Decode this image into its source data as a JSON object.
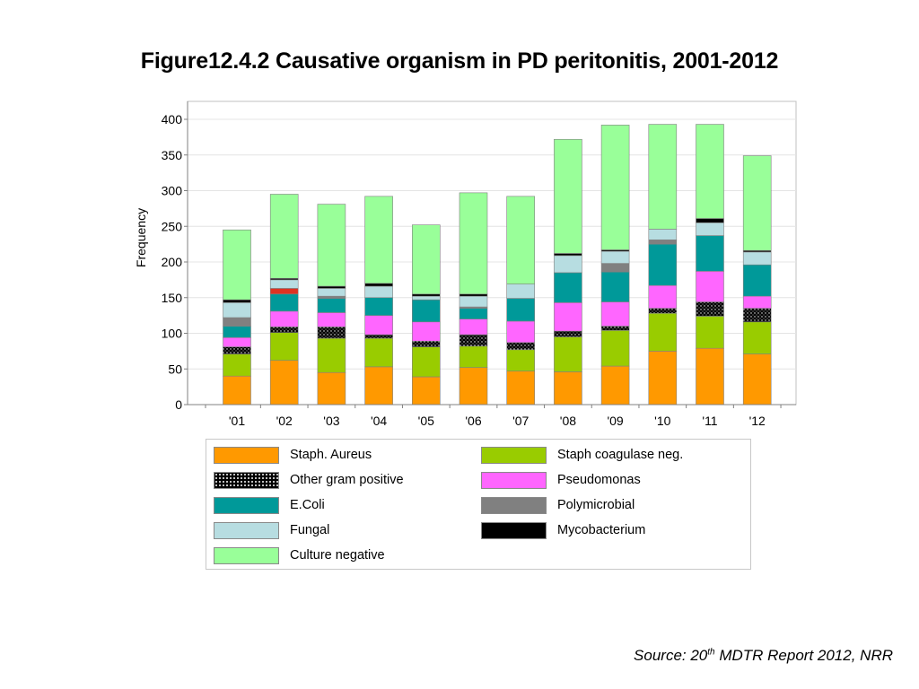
{
  "title": "Figure12.4.2 Causative organism in PD peritonitis, 2001-2012",
  "source": {
    "prefix": "Source: 20",
    "sup": "th",
    "suffix": " MDTR Report 2012, NRR"
  },
  "chart_data": {
    "type": "bar",
    "stacked": true,
    "ylabel": "Frequency",
    "xlabel": "",
    "ylim": [
      0,
      400
    ],
    "yticks": [
      0,
      50,
      100,
      150,
      200,
      250,
      300,
      350,
      400
    ],
    "grid": true,
    "categories": [
      "'01",
      "'02",
      "'03",
      "'04",
      "'05",
      "'06",
      "'07",
      "'08",
      "'09",
      "'10",
      "'11",
      "'12"
    ],
    "series": [
      {
        "name": "Staph. Aureus",
        "color": "#ff9900",
        "pattern": "solid",
        "values": [
          40,
          62,
          45,
          53,
          39,
          52,
          47,
          46,
          54,
          75,
          79,
          71
        ]
      },
      {
        "name": "Staph coagulase neg.",
        "color": "#99cc00",
        "pattern": "solid",
        "values": [
          31,
          39,
          48,
          40,
          42,
          30,
          30,
          49,
          50,
          53,
          45,
          45
        ]
      },
      {
        "name": "Other gram positive",
        "color": "#000000",
        "pattern": "dotted",
        "values": [
          10,
          8,
          16,
          5,
          8,
          16,
          10,
          8,
          6,
          7,
          20,
          19
        ]
      },
      {
        "name": "Pseudomonas",
        "color": "#ff66ff",
        "pattern": "solid",
        "values": [
          13,
          22,
          20,
          27,
          27,
          22,
          30,
          40,
          34,
          32,
          43,
          17
        ]
      },
      {
        "name": "E.Coli",
        "color": "#009999",
        "pattern": "solid",
        "values": [
          16,
          24,
          20,
          25,
          31,
          15,
          32,
          42,
          42,
          58,
          50,
          44
        ]
      },
      {
        "name": "Polymicrobial",
        "color": "#808080",
        "pattern": "solid",
        "values": [
          12,
          0,
          3,
          0,
          0,
          2,
          0,
          0,
          12,
          6,
          0,
          0
        ]
      },
      {
        "name": "Fungal",
        "color": "#b7dde1",
        "pattern": "solid",
        "values": [
          21,
          12,
          11,
          16,
          5,
          15,
          20,
          24,
          17,
          15,
          18,
          18
        ]
      },
      {
        "name": "Mycobacterium",
        "color": "#000000",
        "pattern": "solid",
        "values": [
          4,
          2,
          3,
          4,
          3,
          3,
          0,
          3,
          2,
          0,
          6,
          2
        ]
      },
      {
        "name": "Culture negative",
        "color": "#99ff99",
        "pattern": "solid",
        "values": [
          98,
          118,
          115,
          122,
          97,
          142,
          123,
          160,
          175,
          147,
          132,
          133
        ]
      }
    ],
    "extra_segment_note": {
      "category": "'02",
      "color": "#dd3322",
      "value": 8
    }
  },
  "legend_items": [
    {
      "name": "Staph. Aureus",
      "color": "#ff9900",
      "pattern": "solid"
    },
    {
      "name": "Staph coagulase neg.",
      "color": "#99cc00",
      "pattern": "solid"
    },
    {
      "name": "Other gram positive",
      "color": "#000000",
      "pattern": "dotted"
    },
    {
      "name": "Pseudomonas",
      "color": "#ff66ff",
      "pattern": "solid"
    },
    {
      "name": "E.Coli",
      "color": "#009999",
      "pattern": "solid"
    },
    {
      "name": "Polymicrobial",
      "color": "#808080",
      "pattern": "solid"
    },
    {
      "name": "Fungal",
      "color": "#b7dde1",
      "pattern": "solid"
    },
    {
      "name": "Mycobacterium",
      "color": "#000000",
      "pattern": "solid"
    },
    {
      "name": "Culture negative",
      "color": "#99ff99",
      "pattern": "solid"
    }
  ]
}
